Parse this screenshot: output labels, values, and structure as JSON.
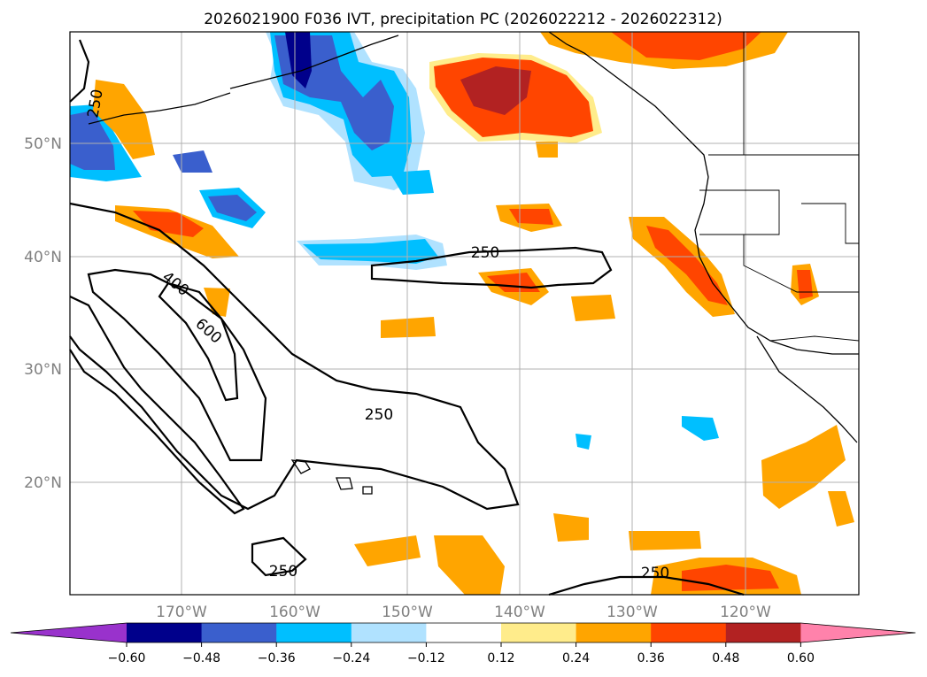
{
  "title": "2026021900 F036 IVT, precipitation PC (2026022212 - 2026022312)",
  "map": {
    "lat_labels": [
      "50°N",
      "40°N",
      "30°N",
      "20°N"
    ],
    "lon_labels": [
      "170°W",
      "160°W",
      "150°W",
      "140°W",
      "130°W",
      "120°W"
    ],
    "contour_labels": [
      "250",
      "400",
      "600",
      "250",
      "250",
      "250",
      "250"
    ]
  },
  "colorbar": {
    "tick_labels": [
      "−0.60",
      "−0.48",
      "−0.36",
      "−0.24",
      "−0.12",
      "0.12",
      "0.24",
      "0.36",
      "0.48",
      "0.60"
    ],
    "colors": [
      "#9932cc",
      "#00008b",
      "#3a5fcd",
      "#00bfff",
      "#b0e2ff",
      "#ffffff",
      "#ffec8b",
      "#ffa500",
      "#ff4500",
      "#b22222",
      "#ff82ab"
    ]
  }
}
